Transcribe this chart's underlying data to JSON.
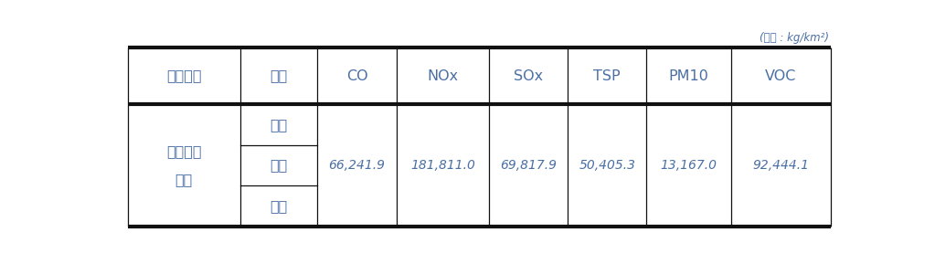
{
  "unit_label": "(단위 : kg/km²)",
  "col_headers": [
    "전망지표",
    "시도",
    "CO",
    "NOx",
    "SOx",
    "TSP",
    "PM10",
    "VOC"
  ],
  "row_group_label_1": "산업단지",
  "row_group_label_2": "면적",
  "sub_rows": [
    "서울",
    "인천",
    "경기"
  ],
  "data_values": [
    "66,241.9",
    "181,811.0",
    "69,817.9",
    "50,405.3",
    "13,167.0",
    "92,444.1"
  ],
  "text_color": "#4a6fa5",
  "unit_color": "#4a6fa5",
  "bg_color": "#ffffff",
  "border_thick_color": "#111111",
  "border_thin_color": "#111111",
  "fig_width": 10.23,
  "fig_height": 2.89
}
